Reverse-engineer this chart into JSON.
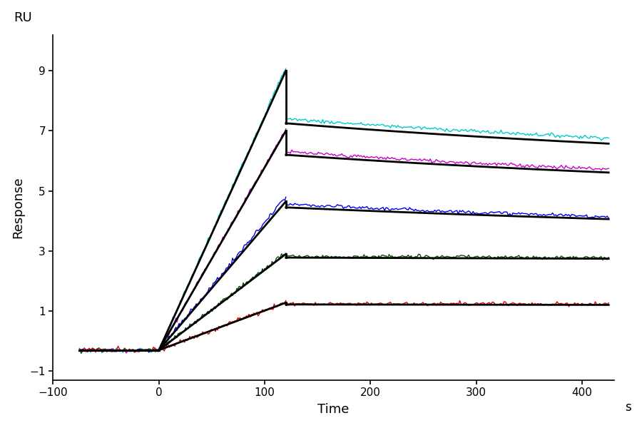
{
  "title": "",
  "xlabel": "Time",
  "ylabel": "Response",
  "ylabel_top": "RU",
  "xlabel_right": "s",
  "xlim": [
    -100,
    430
  ],
  "ylim": [
    -1.3,
    10.2
  ],
  "xticks": [
    -100,
    0,
    100,
    200,
    300,
    400
  ],
  "yticks": [
    -1,
    1,
    3,
    5,
    7,
    9
  ],
  "bg_color": "#ffffff",
  "curves": [
    {
      "color": "#00cccc",
      "assoc_peak": 9.1,
      "dissoc_start": 7.4,
      "dissoc_end": 5.8,
      "fit_peak": 9.0,
      "fit_dissoc_start": 7.25,
      "fit_end": 5.55,
      "tau_assoc": 35.0,
      "tau_dissoc": 600.0
    },
    {
      "color": "#cc00cc",
      "assoc_peak": 7.05,
      "dissoc_start": 6.3,
      "dissoc_end": 4.85,
      "fit_peak": 7.0,
      "fit_dissoc_start": 6.2,
      "fit_end": 4.72,
      "tau_assoc": 35.0,
      "tau_dissoc": 600.0
    },
    {
      "color": "#0000ee",
      "assoc_peak": 4.8,
      "dissoc_start": 4.55,
      "dissoc_end": 3.25,
      "fit_peak": 4.65,
      "fit_dissoc_start": 4.45,
      "fit_end": 3.22,
      "tau_assoc": 35.0,
      "tau_dissoc": 800.0
    },
    {
      "color": "#005500",
      "assoc_peak": 2.95,
      "dissoc_start": 2.82,
      "dissoc_end": 2.62,
      "fit_peak": 2.9,
      "fit_dissoc_start": 2.78,
      "fit_end": 2.58,
      "tau_assoc": 35.0,
      "tau_dissoc": 1500.0
    },
    {
      "color": "#dd0000",
      "assoc_peak": 1.3,
      "dissoc_start": 1.25,
      "dissoc_end": 1.15,
      "fit_peak": 1.28,
      "fit_dissoc_start": 1.22,
      "fit_end": 1.12,
      "tau_assoc": 35.0,
      "tau_dissoc": 2000.0
    }
  ],
  "baseline": -0.3,
  "t_pre_start": -75,
  "t_assoc_start": 0,
  "t_assoc_end": 120,
  "t_dissoc_end": 425
}
